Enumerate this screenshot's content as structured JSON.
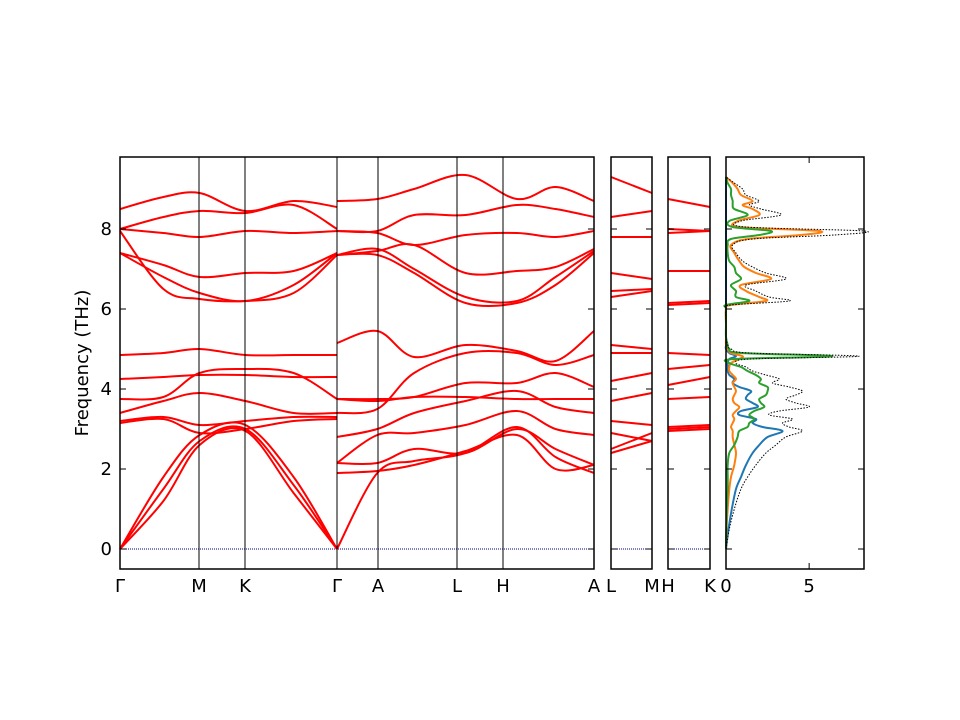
{
  "chart_data": {
    "type": "line",
    "ylabel": "Frequency (THz)",
    "ylim": [
      -0.5,
      9.8
    ],
    "yticks": [
      "0",
      "2",
      "4",
      "6",
      "8"
    ],
    "colors": {
      "bands": "#ff0000",
      "zero_line": "#00008b",
      "dos_total": "#000000",
      "dos_series_1": "#1f77b4",
      "dos_series_2": "#ff7f0e",
      "dos_series_3": "#2ca02c"
    },
    "band_panels": [
      {
        "segments": [
          {
            "labels": [
              "Γ",
              "M",
              "K",
              "Γ"
            ],
            "xs": [
              0,
              0.367,
              0.578,
              1.0
            ]
          },
          {
            "labels": [
              "A",
              "L",
              "H",
              "A"
            ],
            "xs": [
              0.157,
              0.5,
              0.7,
              1.0
            ]
          }
        ],
        "tick_labels": [
          "Γ",
          "M",
          "K",
          "Γ",
          "A",
          "L",
          "H",
          "A"
        ]
      },
      {
        "tick_labels": [
          "L",
          "M"
        ]
      },
      {
        "tick_labels": [
          "H",
          "K"
        ]
      }
    ],
    "bands_gamma_m_k_gamma": [
      [
        0,
        0.2,
        0.367,
        0.578,
        0.8,
        1.0
      ],
      {
        "name": "",
        "values": [
          8.5,
          8.8,
          8.9,
          8.45,
          8.7,
          8.55
        ]
      },
      {
        "name": "",
        "values": [
          8.0,
          8.3,
          8.45,
          8.4,
          8.6,
          8.0
        ]
      },
      {
        "name": "",
        "values": [
          8.0,
          7.9,
          7.8,
          7.95,
          7.9,
          7.95
        ]
      },
      {
        "name": "",
        "values": [
          7.4,
          7.1,
          6.8,
          6.9,
          6.95,
          7.4
        ]
      },
      {
        "name": "",
        "values": [
          7.4,
          6.8,
          6.4,
          6.2,
          6.6,
          7.4
        ]
      },
      {
        "name": "",
        "values": [
          7.95,
          6.5,
          6.25,
          6.2,
          6.4,
          7.35
        ]
      },
      {
        "name": "",
        "values": [
          4.85,
          4.9,
          5.0,
          4.85,
          4.85,
          4.85
        ]
      },
      {
        "name": "",
        "values": [
          4.25,
          4.3,
          4.35,
          4.35,
          4.3,
          4.3
        ]
      },
      {
        "name": "",
        "values": [
          3.75,
          3.8,
          4.4,
          4.5,
          4.4,
          3.75
        ]
      },
      {
        "name": "",
        "values": [
          3.4,
          3.7,
          3.9,
          3.7,
          3.4,
          3.4
        ]
      },
      {
        "name": "",
        "values": [
          3.2,
          3.3,
          3.1,
          3.2,
          3.3,
          3.3
        ]
      },
      {
        "name": "",
        "values": [
          3.15,
          3.25,
          2.9,
          3.0,
          3.2,
          3.25
        ]
      },
      {
        "name": "",
        "values": [
          0,
          1.8,
          2.85,
          3.1,
          1.8,
          0
        ]
      },
      {
        "name": "",
        "values": [
          0,
          1.5,
          2.7,
          3.0,
          1.6,
          0
        ]
      },
      {
        "name": "",
        "values": [
          0,
          1.2,
          2.6,
          2.95,
          1.4,
          0
        ]
      }
    ],
    "bands_a_l_h_a": [
      [
        0,
        0.157,
        0.3,
        0.5,
        0.7,
        0.85,
        1.0
      ],
      {
        "name": "",
        "values": [
          8.7,
          8.75,
          9.0,
          9.35,
          8.75,
          9.05,
          8.7
        ]
      },
      {
        "name": "",
        "values": [
          7.95,
          7.95,
          8.35,
          8.35,
          8.6,
          8.5,
          8.3
        ]
      },
      {
        "name": "",
        "values": [
          7.95,
          7.9,
          7.6,
          7.85,
          7.9,
          7.8,
          7.95
        ]
      },
      {
        "name": "",
        "values": [
          7.35,
          7.45,
          7.6,
          6.9,
          6.95,
          7.05,
          7.5
        ]
      },
      {
        "name": "",
        "values": [
          7.35,
          7.5,
          7.0,
          6.3,
          6.2,
          6.8,
          7.45
        ]
      },
      {
        "name": "",
        "values": [
          7.35,
          7.35,
          6.9,
          6.15,
          6.15,
          6.6,
          7.4
        ]
      },
      {
        "name": "",
        "values": [
          5.15,
          5.45,
          4.8,
          5.1,
          4.95,
          4.7,
          5.45
        ]
      },
      {
        "name": "",
        "values": [
          3.4,
          3.5,
          4.4,
          4.9,
          4.9,
          4.6,
          4.85
        ]
      },
      {
        "name": "",
        "values": [
          3.75,
          3.75,
          3.8,
          4.15,
          4.15,
          4.4,
          4.05
        ]
      },
      {
        "name": "",
        "values": [
          3.75,
          3.7,
          3.8,
          3.8,
          3.75,
          3.75,
          3.75
        ]
      },
      {
        "name": "",
        "values": [
          2.8,
          3.0,
          3.4,
          3.7,
          3.95,
          3.55,
          3.4
        ]
      },
      {
        "name": "",
        "values": [
          2.15,
          2.85,
          2.9,
          3.1,
          3.45,
          3.0,
          2.85
        ]
      },
      {
        "name": "",
        "values": [
          2.15,
          2.15,
          2.5,
          2.4,
          3.0,
          2.5,
          2.1
        ]
      },
      {
        "name": "",
        "values": [
          1.9,
          1.95,
          2.1,
          2.45,
          2.85,
          2.0,
          2.1
        ]
      },
      {
        "name": "",
        "values": [
          0,
          1.9,
          2.2,
          2.4,
          3.05,
          2.3,
          1.9
        ]
      }
    ],
    "bands_l_m": [
      [
        0,
        1
      ],
      {
        "name": "",
        "values": [
          9.3,
          8.9
        ]
      },
      {
        "name": "",
        "values": [
          8.3,
          8.45
        ]
      },
      {
        "name": "",
        "values": [
          7.8,
          7.8
        ]
      },
      {
        "name": "",
        "values": [
          6.9,
          6.75
        ]
      },
      {
        "name": "",
        "values": [
          6.45,
          6.5
        ]
      },
      {
        "name": "",
        "values": [
          6.3,
          6.45
        ]
      },
      {
        "name": "",
        "values": [
          5.1,
          5.0
        ]
      },
      {
        "name": "",
        "values": [
          4.9,
          4.9
        ]
      },
      {
        "name": "",
        "values": [
          4.2,
          4.4
        ]
      },
      {
        "name": "",
        "values": [
          3.7,
          3.9
        ]
      },
      {
        "name": "",
        "values": [
          3.2,
          3.1
        ]
      },
      {
        "name": "",
        "values": [
          2.9,
          2.7
        ]
      },
      {
        "name": "",
        "values": [
          2.5,
          2.9
        ]
      },
      {
        "name": "",
        "values": [
          2.4,
          2.7
        ]
      }
    ],
    "bands_h_k": [
      [
        0,
        1
      ],
      {
        "name": "",
        "values": [
          8.75,
          8.55
        ]
      },
      {
        "name": "",
        "values": [
          8.0,
          7.95
        ]
      },
      {
        "name": "",
        "values": [
          7.9,
          7.95
        ]
      },
      {
        "name": "",
        "values": [
          6.95,
          6.95
        ]
      },
      {
        "name": "",
        "values": [
          6.15,
          6.2
        ]
      },
      {
        "name": "",
        "values": [
          6.1,
          6.15
        ]
      },
      {
        "name": "",
        "values": [
          4.9,
          4.85
        ]
      },
      {
        "name": "",
        "values": [
          4.5,
          4.6
        ]
      },
      {
        "name": "",
        "values": [
          4.1,
          4.3
        ]
      },
      {
        "name": "",
        "values": [
          3.75,
          3.8
        ]
      },
      {
        "name": "",
        "values": [
          3.05,
          3.1
        ]
      },
      {
        "name": "",
        "values": [
          3.0,
          3.05
        ]
      },
      {
        "name": "",
        "values": [
          2.95,
          3.0
        ]
      }
    ],
    "dos": {
      "xlim": [
        0,
        8.3
      ],
      "xticks": [
        "0",
        "5"
      ],
      "freq": [
        0.0,
        0.5,
        1.0,
        1.5,
        1.8,
        2.1,
        2.4,
        2.6,
        2.8,
        2.95,
        3.05,
        3.15,
        3.25,
        3.35,
        3.45,
        3.55,
        3.65,
        3.75,
        3.85,
        3.95,
        4.05,
        4.15,
        4.25,
        4.35,
        4.45,
        4.55,
        4.65,
        4.75,
        4.82,
        4.9,
        5.0,
        5.1,
        5.3,
        5.6,
        6.0,
        6.1,
        6.2,
        6.3,
        6.45,
        6.6,
        6.75,
        6.9,
        7.05,
        7.2,
        7.4,
        7.6,
        7.75,
        7.85,
        7.95,
        8.05,
        8.2,
        8.35,
        8.5,
        8.6,
        8.7,
        8.85,
        9.0,
        9.15,
        9.3
      ],
      "total": [
        0.0,
        0.2,
        0.5,
        0.9,
        1.3,
        1.8,
        2.4,
        3.0,
        3.6,
        4.6,
        3.8,
        3.4,
        4.0,
        2.6,
        3.2,
        5.0,
        4.2,
        3.6,
        4.2,
        4.6,
        3.8,
        2.8,
        3.2,
        2.4,
        1.6,
        1.2,
        0.6,
        1.5,
        8.0,
        1.4,
        0.3,
        0.1,
        0.0,
        0.0,
        0.0,
        0.3,
        3.8,
        2.6,
        1.8,
        1.2,
        3.6,
        2.4,
        1.6,
        1.0,
        0.6,
        0.4,
        1.6,
        6.5,
        8.3,
        1.2,
        0.9,
        3.3,
        2.1,
        1.4,
        2.0,
        1.2,
        1.0,
        0.5,
        0.0
      ],
      "series": [
        {
          "name": "",
          "values": [
            0.0,
            0.15,
            0.35,
            0.6,
            0.9,
            1.2,
            1.6,
            2.0,
            2.5,
            3.4,
            2.2,
            1.6,
            1.8,
            0.8,
            0.9,
            1.9,
            1.6,
            1.2,
            1.3,
            1.5,
            0.8,
            0.4,
            0.5,
            0.2,
            0.1,
            0.1,
            0.1,
            0.2,
            0.6,
            0.2,
            0.0,
            0.0,
            0.0,
            0.0,
            0.0,
            0.0,
            0.0,
            0.0,
            0.0,
            0.0,
            0.0,
            0.0,
            0.0,
            0.0,
            0.0,
            0.0,
            0.0,
            0.0,
            0.0,
            0.0,
            0.0,
            0.0,
            0.0,
            0.0,
            0.0,
            0.0,
            0.0,
            0.0,
            0.0
          ]
        },
        {
          "name": "",
          "values": [
            0.0,
            0.03,
            0.1,
            0.2,
            0.3,
            0.5,
            0.6,
            0.5,
            0.4,
            0.4,
            0.3,
            0.4,
            0.5,
            0.4,
            0.6,
            0.8,
            0.5,
            0.4,
            0.5,
            0.6,
            0.5,
            0.4,
            0.6,
            0.4,
            0.2,
            0.2,
            0.3,
            0.8,
            1.0,
            0.3,
            0.1,
            0.0,
            0.0,
            0.0,
            0.0,
            0.3,
            2.4,
            2.0,
            1.2,
            0.9,
            2.7,
            1.8,
            1.1,
            0.8,
            0.5,
            0.3,
            1.3,
            4.5,
            5.6,
            0.8,
            0.7,
            2.0,
            1.6,
            1.0,
            1.6,
            0.9,
            0.7,
            0.4,
            0.0
          ]
        },
        {
          "name": "",
          "values": [
            0.0,
            0.02,
            0.05,
            0.1,
            0.1,
            0.1,
            0.2,
            0.5,
            0.7,
            0.8,
            1.3,
            1.4,
            1.7,
            1.4,
            1.7,
            2.3,
            2.1,
            2.0,
            2.4,
            2.5,
            2.5,
            2.0,
            2.1,
            1.8,
            1.3,
            0.9,
            0.2,
            0.5,
            6.4,
            0.9,
            0.2,
            0.1,
            0.0,
            0.0,
            0.0,
            0.0,
            1.4,
            0.6,
            0.6,
            0.3,
            0.9,
            0.6,
            0.5,
            0.2,
            0.1,
            0.1,
            0.3,
            2.0,
            2.7,
            0.4,
            0.2,
            1.3,
            0.5,
            0.4,
            0.4,
            0.3,
            0.3,
            0.1,
            0.0
          ]
        }
      ]
    }
  }
}
